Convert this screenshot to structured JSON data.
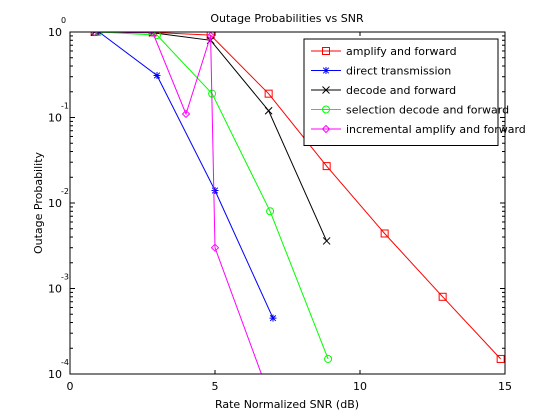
{
  "chart_data": {
    "type": "line",
    "title": "Outage Probabilities vs SNR",
    "xlabel": "Rate Normalized SNR (dB)",
    "ylabel": "Outage Probability",
    "xlim": [
      0,
      15
    ],
    "ylim": [
      0.0001,
      1
    ],
    "yscale": "log",
    "grid": false,
    "legend_position": "top-right",
    "x_ticks": [
      0,
      5,
      10,
      15
    ],
    "x_tick_labels": [
      "0",
      "5",
      "10",
      "15"
    ],
    "y_ticks": [
      1,
      0.1,
      0.01,
      0.001,
      0.0001
    ],
    "y_tick_bases": [
      "10",
      "10",
      "10",
      "10",
      "10"
    ],
    "y_tick_exponents": [
      "0",
      "-1",
      "-2",
      "-3",
      "-4"
    ],
    "series": [
      {
        "name": "amplify and forward",
        "color": "#ff0000",
        "marker": "square",
        "x": [
          0.85,
          2.85,
          4.85,
          6.85,
          8.85,
          10.85,
          12.85,
          14.85
        ],
        "y": [
          1.0,
          0.99,
          0.92,
          0.19,
          0.027,
          0.0044,
          0.0008,
          0.00015
        ]
      },
      {
        "name": "direct transmission",
        "color": "#0000ff",
        "marker": "star",
        "x": [
          1.0,
          3.0,
          5.0,
          7.0
        ],
        "y": [
          1.0,
          0.31,
          0.014,
          0.00045
        ]
      },
      {
        "name": "decode and forward",
        "color": "#000000",
        "marker": "x",
        "x": [
          0.85,
          2.85,
          4.85,
          6.85,
          8.85
        ],
        "y": [
          1.0,
          0.98,
          0.8,
          0.12,
          0.0036
        ]
      },
      {
        "name": "selection decode and forward",
        "color": "#00ff00",
        "marker": "circle",
        "x": [
          1.0,
          3.0,
          4.9,
          6.9,
          8.9
        ],
        "y": [
          1.0,
          0.92,
          0.19,
          0.008,
          0.00015
        ]
      },
      {
        "name": "incremental amplify and forward",
        "color": "#ff00ff",
        "marker": "diamond",
        "x": [
          0.85,
          2.85,
          4.0,
          4.85,
          5.0,
          6.6
        ],
        "y": [
          1.0,
          0.99,
          0.11,
          0.9,
          0.003,
          0.0001
        ]
      }
    ]
  }
}
